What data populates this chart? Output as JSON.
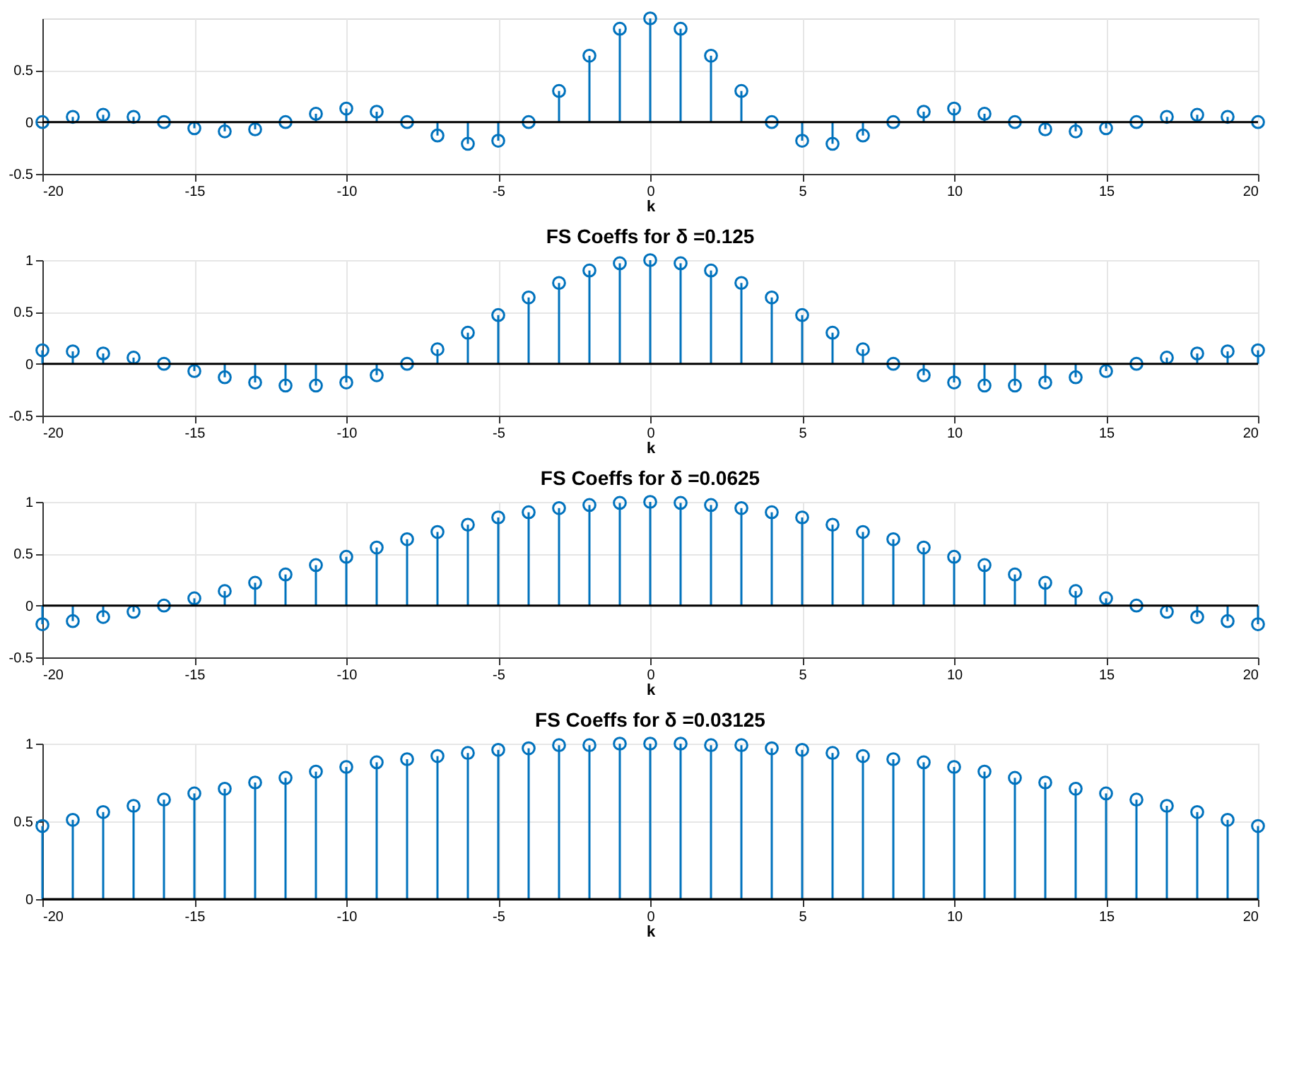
{
  "chart_data": [
    {
      "type": "lollipop",
      "xlabel": "k",
      "x": [
        -20,
        -19,
        -18,
        -17,
        -16,
        -15,
        -14,
        -13,
        -12,
        -11,
        -10,
        -9,
        -8,
        -7,
        -6,
        -5,
        -4,
        -3,
        -2,
        -1,
        0,
        1,
        2,
        3,
        4,
        5,
        6,
        7,
        8,
        9,
        10,
        11,
        12,
        13,
        14,
        15,
        16,
        17,
        18,
        19,
        20
      ],
      "series": [
        {
          "color": "#0072bd",
          "values": [
            0,
            0.05,
            0.07,
            0.05,
            0,
            -0.06,
            -0.09,
            -0.07,
            0,
            0.08,
            0.13,
            0.1,
            0,
            -0.13,
            -0.21,
            -0.18,
            0,
            0.3,
            0.64,
            0.9,
            1,
            0.9,
            0.64,
            0.3,
            0,
            -0.18,
            -0.21,
            -0.13,
            0,
            0.1,
            0.13,
            0.08,
            0,
            -0.07,
            -0.09,
            -0.06,
            0,
            0.05,
            0.07,
            0.05,
            0
          ]
        }
      ],
      "xlim": [
        -20,
        20
      ],
      "xticks": [
        -20,
        -15,
        -10,
        -5,
        0,
        5,
        10,
        15,
        20
      ],
      "ylim": [
        -0.5,
        1
      ],
      "yticks": [
        -0.5,
        0,
        0.5
      ],
      "grid": true,
      "marker": "circle",
      "legend": false,
      "ref_lines": [
        {
          "axis": "y",
          "value": 0,
          "color": "#000000"
        }
      ]
    },
    {
      "type": "lollipop",
      "title": "FS Coeffs for δ =0.125",
      "xlabel": "k",
      "x": [
        -20,
        -19,
        -18,
        -17,
        -16,
        -15,
        -14,
        -13,
        -12,
        -11,
        -10,
        -9,
        -8,
        -7,
        -6,
        -5,
        -4,
        -3,
        -2,
        -1,
        0,
        1,
        2,
        3,
        4,
        5,
        6,
        7,
        8,
        9,
        10,
        11,
        12,
        13,
        14,
        15,
        16,
        17,
        18,
        19,
        20
      ],
      "series": [
        {
          "color": "#0072bd",
          "values": [
            0.13,
            0.12,
            0.1,
            0.06,
            0,
            -0.07,
            -0.13,
            -0.18,
            -0.21,
            -0.21,
            -0.18,
            -0.11,
            0,
            0.14,
            0.3,
            0.47,
            0.64,
            0.78,
            0.9,
            0.97,
            1,
            0.97,
            0.9,
            0.78,
            0.64,
            0.47,
            0.3,
            0.14,
            0,
            -0.11,
            -0.18,
            -0.21,
            -0.21,
            -0.18,
            -0.13,
            -0.07,
            0,
            0.06,
            0.1,
            0.12,
            0.13
          ]
        }
      ],
      "xlim": [
        -20,
        20
      ],
      "xticks": [
        -20,
        -15,
        -10,
        -5,
        0,
        5,
        10,
        15,
        20
      ],
      "ylim": [
        -0.5,
        1
      ],
      "yticks": [
        -0.5,
        0,
        0.5,
        1
      ],
      "grid": true,
      "marker": "circle",
      "legend": false,
      "ref_lines": [
        {
          "axis": "y",
          "value": 0,
          "color": "#000000"
        }
      ]
    },
    {
      "type": "lollipop",
      "title": "FS Coeffs for δ =0.0625",
      "xlabel": "k",
      "x": [
        -20,
        -19,
        -18,
        -17,
        -16,
        -15,
        -14,
        -13,
        -12,
        -11,
        -10,
        -9,
        -8,
        -7,
        -6,
        -5,
        -4,
        -3,
        -2,
        -1,
        0,
        1,
        2,
        3,
        4,
        5,
        6,
        7,
        8,
        9,
        10,
        11,
        12,
        13,
        14,
        15,
        16,
        17,
        18,
        19,
        20
      ],
      "series": [
        {
          "color": "#0072bd",
          "values": [
            -0.18,
            -0.15,
            -0.11,
            -0.06,
            0,
            0.07,
            0.14,
            0.22,
            0.3,
            0.39,
            0.47,
            0.56,
            0.64,
            0.71,
            0.78,
            0.85,
            0.9,
            0.94,
            0.97,
            0.99,
            1,
            0.99,
            0.97,
            0.94,
            0.9,
            0.85,
            0.78,
            0.71,
            0.64,
            0.56,
            0.47,
            0.39,
            0.3,
            0.22,
            0.14,
            0.07,
            0,
            -0.06,
            -0.11,
            -0.15,
            -0.18
          ]
        }
      ],
      "xlim": [
        -20,
        20
      ],
      "xticks": [
        -20,
        -15,
        -10,
        -5,
        0,
        5,
        10,
        15,
        20
      ],
      "ylim": [
        -0.5,
        1
      ],
      "yticks": [
        -0.5,
        0,
        0.5,
        1
      ],
      "grid": true,
      "marker": "circle",
      "legend": false,
      "ref_lines": [
        {
          "axis": "y",
          "value": 0,
          "color": "#000000"
        }
      ]
    },
    {
      "type": "lollipop",
      "title": "FS Coeffs for δ =0.03125",
      "xlabel": "k",
      "x": [
        -20,
        -19,
        -18,
        -17,
        -16,
        -15,
        -14,
        -13,
        -12,
        -11,
        -10,
        -9,
        -8,
        -7,
        -6,
        -5,
        -4,
        -3,
        -2,
        -1,
        0,
        1,
        2,
        3,
        4,
        5,
        6,
        7,
        8,
        9,
        10,
        11,
        12,
        13,
        14,
        15,
        16,
        17,
        18,
        19,
        20
      ],
      "series": [
        {
          "color": "#0072bd",
          "values": [
            0.47,
            0.51,
            0.56,
            0.6,
            0.64,
            0.68,
            0.71,
            0.75,
            0.78,
            0.82,
            0.85,
            0.88,
            0.9,
            0.92,
            0.94,
            0.96,
            0.97,
            0.99,
            0.99,
            1,
            1,
            1,
            0.99,
            0.99,
            0.97,
            0.96,
            0.94,
            0.92,
            0.9,
            0.88,
            0.85,
            0.82,
            0.78,
            0.75,
            0.71,
            0.68,
            0.64,
            0.6,
            0.56,
            0.51,
            0.47
          ]
        }
      ],
      "xlim": [
        -20,
        20
      ],
      "xticks": [
        -20,
        -15,
        -10,
        -5,
        0,
        5,
        10,
        15,
        20
      ],
      "ylim": [
        0,
        1
      ],
      "yticks": [
        0,
        0.5,
        1
      ],
      "grid": true,
      "marker": "circle",
      "legend": false,
      "ref_lines": [
        {
          "axis": "y",
          "value": 0,
          "color": "#000000"
        }
      ]
    }
  ]
}
